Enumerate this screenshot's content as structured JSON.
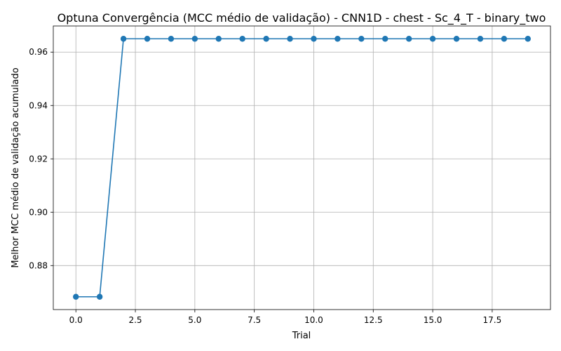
{
  "chart_data": {
    "type": "line",
    "title": "Optuna Convergência (MCC médio de validação) - CNN1D - chest - Sc_4_T - binary_two",
    "xlabel": "Trial",
    "ylabel": "Melhor MCC médio de validação acumulado",
    "xlim": [
      -0.95,
      19.95
    ],
    "ylim": [
      0.8635,
      0.9698
    ],
    "x_ticks": [
      0.0,
      2.5,
      5.0,
      7.5,
      10.0,
      12.5,
      15.0,
      17.5
    ],
    "x_tick_labels": [
      "0.0",
      "2.5",
      "5.0",
      "7.5",
      "10.0",
      "12.5",
      "15.0",
      "17.5"
    ],
    "y_ticks": [
      0.88,
      0.9,
      0.92,
      0.94,
      0.96
    ],
    "y_tick_labels": [
      "0.88",
      "0.90",
      "0.92",
      "0.94",
      "0.96"
    ],
    "grid": true,
    "series": [
      {
        "color": "#1f77b4",
        "marker": "circle",
        "x": [
          0,
          1,
          2,
          3,
          4,
          5,
          6,
          7,
          8,
          9,
          10,
          11,
          12,
          13,
          14,
          15,
          16,
          17,
          18,
          19
        ],
        "y": [
          0.8683,
          0.8683,
          0.965,
          0.965,
          0.965,
          0.965,
          0.965,
          0.965,
          0.965,
          0.965,
          0.965,
          0.965,
          0.965,
          0.965,
          0.965,
          0.965,
          0.965,
          0.965,
          0.965,
          0.965
        ]
      }
    ]
  }
}
